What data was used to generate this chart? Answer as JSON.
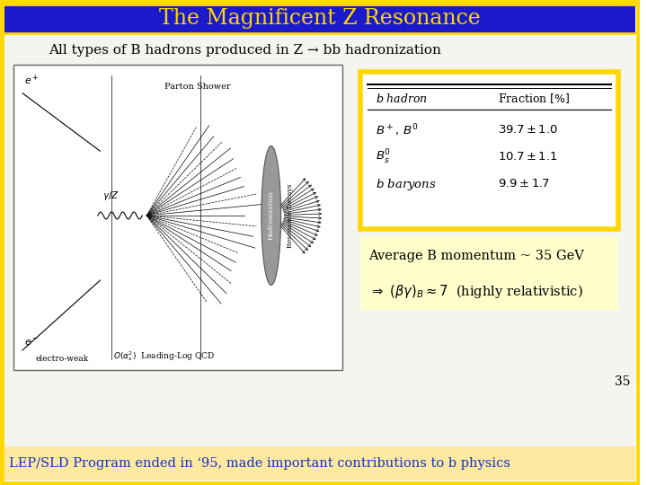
{
  "title": "The Magnificent Z Resonance",
  "title_color": "#FFD700",
  "title_bg_color": "#1a1acc",
  "title_border_color": "#FFD700",
  "bg_color": "#ffffff",
  "slide_bg_color": "#f5f5f0",
  "subtitle": "All types of B hadrons produced in Z → bb hadronization",
  "subtitle_color": "#000000",
  "table_border_color": "#FFD700",
  "table_bg_color": "#ffffff",
  "avg_bg_color": "#ffffcc",
  "bottom_text": "LEP/SLD Program ended in ‘95, made important contributions to b physics",
  "bottom_bg_color": "#ffe8a0",
  "bottom_text_color": "#1133cc",
  "page_number": "35",
  "outer_border_color": "#FFD700"
}
